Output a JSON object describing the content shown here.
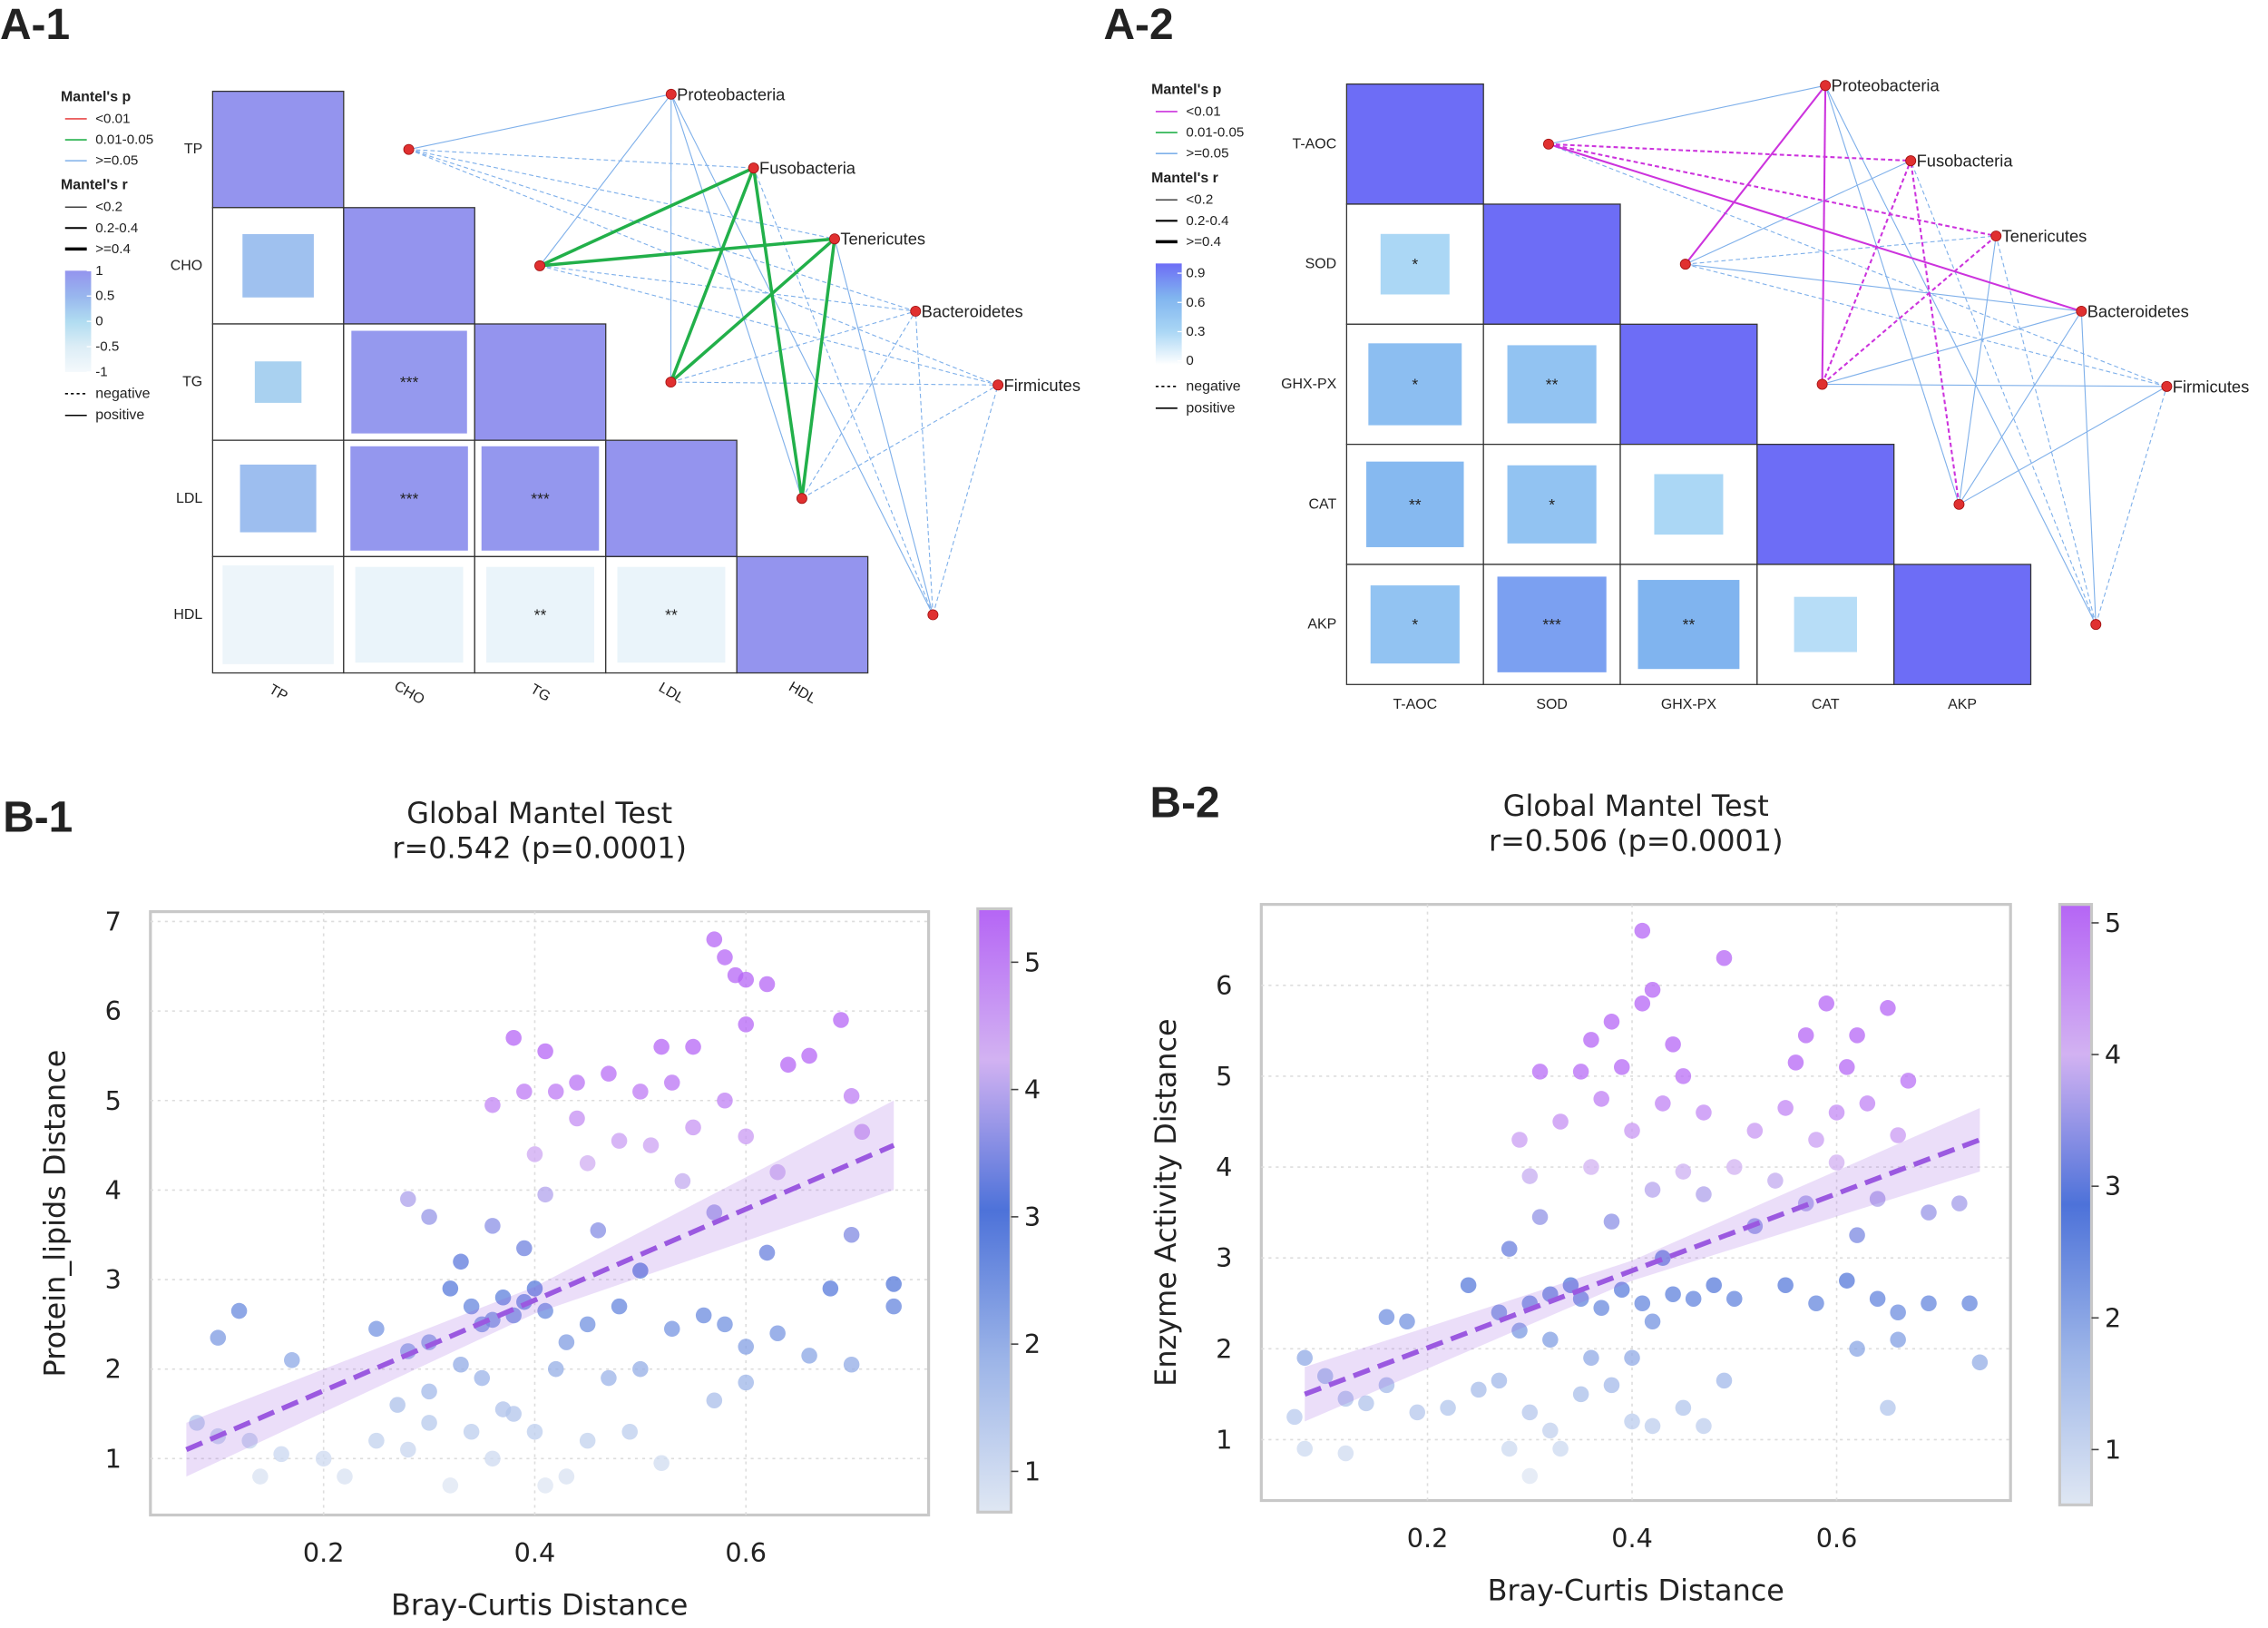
{
  "chart_data": [
    {
      "type": "mantel",
      "panel": "A-1",
      "variables": [
        "TP",
        "CHO",
        "TG",
        "LDL",
        "HDL"
      ],
      "matrix": [
        [
          1,
          null,
          null,
          null,
          null
        ],
        [
          0.35,
          1,
          null,
          null,
          null
        ],
        [
          0.15,
          0.92,
          1,
          null,
          null
        ],
        [
          0.4,
          0.95,
          0.95,
          1,
          null
        ],
        [
          -0.85,
          -0.8,
          -0.8,
          -0.8,
          1
        ]
      ],
      "labels": [
        [
          null,
          null,
          null,
          null,
          null
        ],
        [
          null,
          null,
          null,
          null,
          null
        ],
        [
          null,
          "***",
          null,
          null,
          null
        ],
        [
          null,
          "***",
          "***",
          null,
          null
        ],
        [
          null,
          null,
          "**",
          "**",
          null
        ]
      ],
      "clim": [
        -1,
        1
      ],
      "colorbar_ticks": [
        1,
        0.5,
        0,
        -0.5,
        -1
      ],
      "colormap": [
        "#f4f9fc",
        "#dcedf6",
        "#b0dcf1",
        "#98b6ee",
        "#9494ee"
      ],
      "species": [
        "Proteobacteria",
        "Fusobacteria",
        "Tenericutes",
        "Bacteroidetes",
        "Firmicutes"
      ],
      "mantel_r": [
        [
          0.12,
          -0.08,
          -0.1,
          -0.05,
          -0.06
        ],
        [
          0.15,
          0.45,
          0.42,
          -0.1,
          -0.08
        ],
        [
          0.18,
          0.44,
          0.43,
          -0.07,
          -0.09
        ],
        [
          0.14,
          0.46,
          0.41,
          -0.06,
          -0.1
        ],
        [
          0.1,
          -0.05,
          0.12,
          -0.08,
          -0.07
        ]
      ],
      "mantel_p": [
        [
          0.3,
          0.3,
          0.3,
          0.3,
          0.3
        ],
        [
          0.2,
          0.02,
          0.03,
          0.4,
          0.5
        ],
        [
          0.1,
          0.02,
          0.02,
          0.4,
          0.5
        ],
        [
          0.2,
          0.02,
          0.03,
          0.5,
          0.4
        ],
        [
          0.5,
          0.5,
          0.5,
          0.5,
          0.5
        ]
      ],
      "p_title": "Mantel's p",
      "p_breaks": [
        0.01,
        0.05
      ],
      "p_labels": [
        "<0.01",
        "0.01-0.05",
        ">=0.05"
      ],
      "p_colors": [
        "#e84a4a",
        "#22b04a",
        "#7fb0ea"
      ],
      "r_title": "Mantel's r",
      "r_breaks": [
        0.2,
        0.4
      ],
      "r_labels": [
        "<0.2",
        "0.2-0.4",
        ">=0.4"
      ],
      "sign_labels": [
        "negative",
        "positive"
      ]
    },
    {
      "type": "mantel",
      "panel": "A-2",
      "variables": [
        "T-AOC",
        "SOD",
        "GHX-PX",
        "CAT",
        "AKP"
      ],
      "matrix": [
        [
          1,
          null,
          null,
          null,
          null
        ],
        [
          0.3,
          1,
          null,
          null,
          null
        ],
        [
          0.55,
          0.5,
          1,
          null,
          null
        ],
        [
          0.6,
          0.5,
          0.3,
          1,
          null
        ],
        [
          0.5,
          0.75,
          0.65,
          0.25,
          1
        ]
      ],
      "labels": [
        [
          null,
          null,
          null,
          null,
          null
        ],
        [
          "*",
          null,
          null,
          null,
          null
        ],
        [
          "*",
          "**",
          null,
          null,
          null
        ],
        [
          "**",
          "*",
          null,
          null,
          null
        ],
        [
          "*",
          "***",
          "**",
          null,
          null
        ]
      ],
      "clim": [
        -0.04,
        1.0
      ],
      "colorbar_ticks": [
        0.9,
        0.6,
        0.3,
        0
      ],
      "colormap": [
        "#ffffff",
        "#a9d6f5",
        "#80b4ef",
        "#6d6df6"
      ],
      "species": [
        "Proteobacteria",
        "Fusobacteria",
        "Tenericutes",
        "Bacteroidetes",
        "Firmicutes"
      ],
      "mantel_r": [
        [
          0.12,
          -0.3,
          -0.25,
          0.3,
          -0.1
        ],
        [
          0.3,
          0.1,
          -0.08,
          0.12,
          -0.1
        ],
        [
          0.3,
          -0.3,
          -0.25,
          0.1,
          0.1
        ],
        [
          0.1,
          -0.25,
          0.12,
          0.1,
          0.1
        ],
        [
          0.1,
          -0.08,
          -0.1,
          0.1,
          -0.06
        ]
      ],
      "mantel_p": [
        [
          0.2,
          0.005,
          0.008,
          0.004,
          0.4
        ],
        [
          0.006,
          0.3,
          0.4,
          0.2,
          0.5
        ],
        [
          0.004,
          0.006,
          0.008,
          0.3,
          0.3
        ],
        [
          0.3,
          0.007,
          0.2,
          0.3,
          0.2
        ],
        [
          0.4,
          0.4,
          0.4,
          0.4,
          0.4
        ]
      ],
      "p_title": "Mantel's p",
      "p_breaks": [
        0.01,
        0.05
      ],
      "p_labels": [
        "<0.01",
        "0.01-0.05",
        ">=0.05"
      ],
      "p_colors": [
        "#cc33dd",
        "#22b04a",
        "#7fb0ea"
      ],
      "r_title": "Mantel's r",
      "r_breaks": [
        0.2,
        0.4
      ],
      "r_labels": [
        "<0.2",
        "0.2-0.4",
        ">=0.4"
      ],
      "sign_labels": [
        "negative",
        "positive"
      ]
    },
    {
      "type": "scatter",
      "panel": "B-1",
      "title": "Global Mantel Test",
      "subtitle": "r=0.542 (p=0.0001)",
      "xlabel": "Bray-Curtis Distance",
      "ylabel": "Protein_lipids Distance",
      "x": [
        0.57,
        0.58,
        0.59,
        0.6,
        0.62,
        0.6,
        0.38,
        0.55,
        0.52,
        0.64,
        0.69,
        0.66,
        0.41,
        0.47,
        0.44,
        0.53,
        0.39,
        0.42,
        0.5,
        0.7,
        0.58,
        0.36,
        0.44,
        0.55,
        0.71,
        0.6,
        0.48,
        0.4,
        0.51,
        0.45,
        0.63,
        0.54,
        0.28,
        0.41,
        0.3,
        0.57,
        0.36,
        0.46,
        0.7,
        0.39,
        0.62,
        0.33,
        0.5,
        0.12,
        0.1,
        0.17,
        0.25,
        0.28,
        0.3,
        0.32,
        0.34,
        0.35,
        0.36,
        0.37,
        0.38,
        0.39,
        0.4,
        0.41,
        0.43,
        0.45,
        0.48,
        0.5,
        0.53,
        0.56,
        0.6,
        0.63,
        0.66,
        0.68,
        0.74,
        0.74,
        0.7,
        0.58,
        0.47,
        0.42,
        0.33,
        0.3,
        0.35,
        0.27,
        0.37,
        0.08,
        0.1,
        0.13,
        0.14,
        0.16,
        0.2,
        0.22,
        0.25,
        0.28,
        0.3,
        0.32,
        0.34,
        0.36,
        0.38,
        0.4,
        0.41,
        0.43,
        0.45,
        0.52,
        0.6,
        0.57,
        0.49
      ],
      "y": [
        6.8,
        6.6,
        6.4,
        6.35,
        6.3,
        5.85,
        5.7,
        5.6,
        5.6,
        5.4,
        5.9,
        5.5,
        5.55,
        5.3,
        5.2,
        5.2,
        5.1,
        5.1,
        5.1,
        5.05,
        5.0,
        4.95,
        4.8,
        4.7,
        4.65,
        4.6,
        4.55,
        4.4,
        4.5,
        4.3,
        4.2,
        4.1,
        3.9,
        3.95,
        3.7,
        3.75,
        3.6,
        3.55,
        3.5,
        3.35,
        3.3,
        3.2,
        3.1,
        2.65,
        2.35,
        2.1,
        2.45,
        2.2,
        2.3,
        2.9,
        2.7,
        2.5,
        2.55,
        2.8,
        2.6,
        2.75,
        2.9,
        2.65,
        2.3,
        2.5,
        2.7,
        2.0,
        2.45,
        2.6,
        2.25,
        2.4,
        2.15,
        2.9,
        2.95,
        2.7,
        2.05,
        2.5,
        1.9,
        2.0,
        2.05,
        1.75,
        1.9,
        1.6,
        1.55,
        1.4,
        1.25,
        1.2,
        0.8,
        1.05,
        1.0,
        0.8,
        1.2,
        1.1,
        1.4,
        0.7,
        1.3,
        1.0,
        1.5,
        1.3,
        0.7,
        0.8,
        1.2,
        0.95,
        1.85,
        1.65,
        1.3
      ],
      "xlim": [
        0.036,
        0.773
      ],
      "ylim": [
        0.37,
        7.11
      ],
      "xticks": [
        0.2,
        0.4,
        0.6
      ],
      "yticks": [
        1,
        2,
        3,
        4,
        5,
        6,
        7
      ],
      "clim": [
        0.68,
        5.42
      ],
      "colorbar_ticks": [
        1,
        2,
        3,
        4,
        5
      ],
      "colormap": [
        "#dfe7f3",
        "#9db5e8",
        "#4d72d9",
        "#d2b2f2",
        "#b565f5"
      ],
      "fit": {
        "x": [
          0.07,
          0.4,
          0.74
        ],
        "y": [
          1.1,
          2.77,
          4.5
        ],
        "lower": [
          0.8,
          2.62,
          4.0
        ],
        "upper": [
          1.4,
          2.92,
          5.0
        ]
      },
      "fit_color": "#9b59e0",
      "grid": true
    },
    {
      "type": "scatter",
      "panel": "B-2",
      "title": "Global Mantel Test",
      "subtitle": "r=0.506 (p=0.0001)",
      "xlabel": "Bray-Curtis Distance",
      "ylabel": "Enzyme Activity Distance",
      "x": [
        0.41,
        0.49,
        0.42,
        0.41,
        0.38,
        0.59,
        0.65,
        0.36,
        0.44,
        0.57,
        0.62,
        0.31,
        0.35,
        0.39,
        0.45,
        0.56,
        0.61,
        0.67,
        0.37,
        0.43,
        0.47,
        0.55,
        0.6,
        0.63,
        0.33,
        0.4,
        0.52,
        0.58,
        0.66,
        0.29,
        0.36,
        0.45,
        0.5,
        0.54,
        0.6,
        0.3,
        0.42,
        0.47,
        0.57,
        0.64,
        0.72,
        0.31,
        0.38,
        0.52,
        0.62,
        0.69,
        0.28,
        0.43,
        0.16,
        0.18,
        0.24,
        0.27,
        0.3,
        0.32,
        0.34,
        0.35,
        0.37,
        0.39,
        0.41,
        0.44,
        0.46,
        0.48,
        0.5,
        0.55,
        0.58,
        0.61,
        0.64,
        0.66,
        0.69,
        0.73,
        0.62,
        0.66,
        0.74,
        0.42,
        0.32,
        0.36,
        0.4,
        0.29,
        0.08,
        0.07,
        0.08,
        0.1,
        0.12,
        0.12,
        0.14,
        0.16,
        0.19,
        0.22,
        0.25,
        0.27,
        0.28,
        0.3,
        0.3,
        0.32,
        0.33,
        0.35,
        0.38,
        0.4,
        0.42,
        0.45,
        0.47,
        0.49,
        0.65
      ],
      "y": [
        6.6,
        6.3,
        5.95,
        5.8,
        5.6,
        5.8,
        5.75,
        5.4,
        5.35,
        5.45,
        5.45,
        5.05,
        5.05,
        5.1,
        5.0,
        5.15,
        5.1,
        4.95,
        4.75,
        4.7,
        4.6,
        4.65,
        4.6,
        4.7,
        4.5,
        4.4,
        4.4,
        4.3,
        4.35,
        4.3,
        4.0,
        3.95,
        4.0,
        3.85,
        4.05,
        3.9,
        3.75,
        3.7,
        3.6,
        3.65,
        3.6,
        3.45,
        3.4,
        3.35,
        3.25,
        3.5,
        3.1,
        3.0,
        2.35,
        2.3,
        2.7,
        2.4,
        2.5,
        2.6,
        2.7,
        2.55,
        2.45,
        2.65,
        2.5,
        2.6,
        2.55,
        2.7,
        2.55,
        2.7,
        2.5,
        2.75,
        2.55,
        2.4,
        2.5,
        2.5,
        2.0,
        2.1,
        1.85,
        2.3,
        2.1,
        1.9,
        1.9,
        2.2,
        1.9,
        1.25,
        0.9,
        1.7,
        1.45,
        0.85,
        1.4,
        1.6,
        1.3,
        1.35,
        1.55,
        1.65,
        0.9,
        1.3,
        0.6,
        1.1,
        0.9,
        1.5,
        1.6,
        1.2,
        1.15,
        1.35,
        1.15,
        1.65,
        1.35
      ],
      "xlim": [
        0.0375,
        0.77
      ],
      "ylim": [
        0.33,
        6.89
      ],
      "xticks": [
        0.2,
        0.4,
        0.6
      ],
      "yticks": [
        1,
        2,
        3,
        4,
        5,
        6
      ],
      "clim": [
        0.58,
        5.14
      ],
      "colorbar_ticks": [
        1,
        2,
        3,
        4,
        5
      ],
      "colormap": [
        "#dfe7f3",
        "#9db5e8",
        "#4d72d9",
        "#d2b2f2",
        "#b565f5"
      ],
      "fit": {
        "x": [
          0.08,
          0.4,
          0.74
        ],
        "y": [
          1.5,
          2.86,
          4.3
        ],
        "lower": [
          1.2,
          2.75,
          3.95
        ],
        "upper": [
          1.8,
          2.97,
          4.65
        ]
      },
      "fit_color": "#9b59e0",
      "grid": true
    }
  ]
}
